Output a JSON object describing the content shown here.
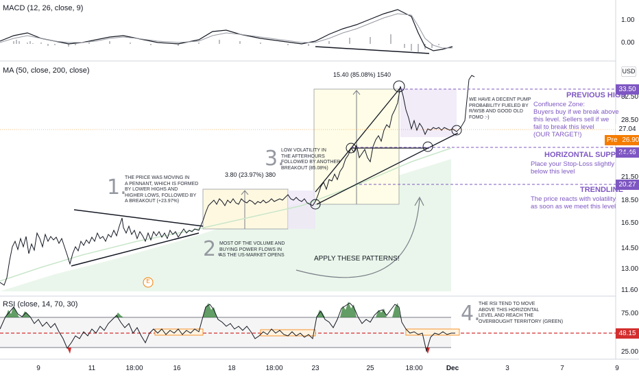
{
  "indicators": {
    "macd": "MACD (12, 26, close, 9)",
    "ma": "MA (50, close, 200, close)",
    "rsi": "RSI (close, 14, 70, 30)"
  },
  "price_axis": {
    "currency": "USD",
    "macd_ticks": [
      "1.00",
      "0.00"
    ],
    "main_ticks": [
      "32.50",
      "28.50",
      "24.46",
      "21.50",
      "18.50",
      "16.50",
      "14.50",
      "13.00",
      "11.60"
    ],
    "rsi_ticks": [
      "75.00",
      "25.00"
    ]
  },
  "badges": {
    "previous_high": "33.50",
    "last_price": "27.04",
    "pre_label": "Pre",
    "pre_price": "26.90",
    "support": "24.46",
    "trendline": "20.27",
    "rsi_value": "48.15"
  },
  "time_axis": [
    "9",
    "11",
    "18:00",
    "16",
    "18",
    "18:00",
    "23",
    "25",
    "18:00",
    "Dec",
    "3",
    "7",
    "9"
  ],
  "annotations": {
    "step1_num": "1.",
    "step1_text": "THE PRICE WAS MOVING IN\nA PENNANT, WHICH IS FORMED\nBY LOWER HIGHS AND\nHIGHER LOWS, FOLLOWED BY\nA BREAKOUT (+23.97%)",
    "step2_num": "2.",
    "step2_text": "MOST OF THE VOLUME AND\nBUYING POWER FLOWS IN\nAS THE US-MARKET OPENS",
    "step3_num": "3.",
    "step3_text": "LOW VOLATILITY IN\nTHE AFTERHOURS\nFOLLOWED BY ANOTHER\nBREAKOUT (85.08%)",
    "step4_num": "4.",
    "step4_text": "THE RSI TEND TO MOVE\nABOVE THIS HORIZONTAL\nLEVEL AND REACH THE\nOVERBOUGHT TERRITORY (GREEN)",
    "pump_text": "WE HAVE A DECENT PUMP\nPROBABILITY FUELED BY\nr/WSB AND GOOD OLD\nFOMO :-)",
    "measure1": "3.80 (23.97%) 380",
    "measure2": "15.40 (85.08%) 1540",
    "apply": "APPLY THESE PATTERNS!",
    "earnings": "E",
    "previous_high_title": "PREVIOUS HIGH",
    "previous_high_text": "Confluence Zone:\nBuyers buy if we break above\nthis level. Sellers sell if we\nfail to break this level\n(OUR TARGET!)",
    "support_title": "HORIZONTAL SUPPORT",
    "support_text": "Place your Stop-Loss slightly\nbelow this level",
    "trendline_title": "TRENDLINE",
    "trendline_text": "The price reacts with volatility\nas soon as we meet this level"
  },
  "colors": {
    "accent_purple": "#7e57c2",
    "orange": "#f57c00",
    "rsi_red": "#d32f2f",
    "gray_dark": "#131722"
  }
}
